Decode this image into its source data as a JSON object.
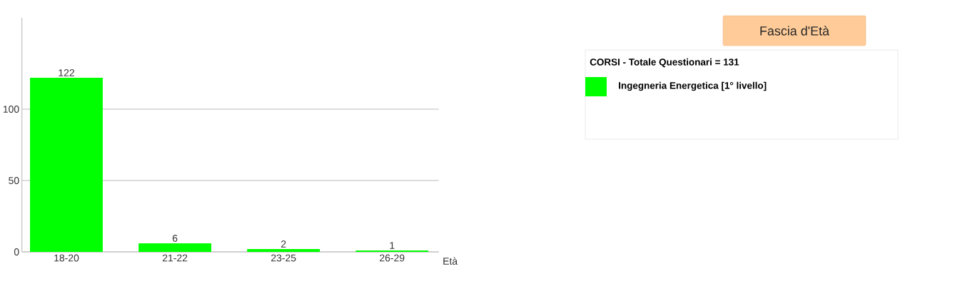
{
  "chart_data": {
    "type": "bar",
    "title": "Fascia d'Età",
    "xlabel": "Età",
    "legend_title": "CORSI - Totale Questionari = 131",
    "categories": [
      "18-20",
      "21-22",
      "23-25",
      "26-29"
    ],
    "series": [
      {
        "name": "Ingegneria Energetica [1° livello]",
        "color": "#00ff00",
        "values": [
          122,
          6,
          2,
          1
        ]
      }
    ],
    "ylim": [
      0,
      164
    ],
    "yticks": [
      0,
      50,
      100
    ],
    "grid": "y",
    "data_labels": true,
    "legend": "right"
  }
}
